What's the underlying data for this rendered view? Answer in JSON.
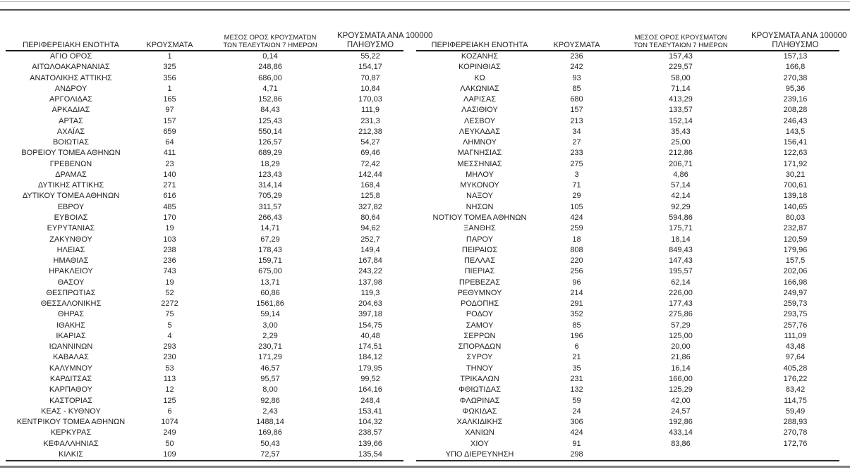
{
  "columns": {
    "region": "ΠΕΡΙΦΕΡΕΙΑΚΗ ΕΝΟΤΗΤΑ",
    "cases": "ΚΡΟΥΣΜΑΤΑ",
    "avg7_line1": "ΜΕΣΟΣ ΟΡΟΣ ΚΡΟΥΣΜΑΤΩΝ",
    "avg7_line2": "ΤΩΝ ΤΕΛΕΥΤΑΙΩΝ 7 ΗΜΕΡΩΝ",
    "per100k_line1": "ΚΡΟΥΣΜΑΤΑ ΑΝΑ 100000",
    "per100k_line2": "ΠΛΗΘΥΣΜΟ"
  },
  "tables": {
    "left": {
      "rows": [
        [
          "ΑΓΙΟ ΟΡΟΣ",
          "1",
          "0,14",
          "55,22"
        ],
        [
          "ΑΙΤΩΛΟΑΚΑΡΝΑΝΙΑΣ",
          "325",
          "248,86",
          "154,17"
        ],
        [
          "ΑΝΑΤΟΛΙΚΗΣ ΑΤΤΙΚΗΣ",
          "356",
          "686,00",
          "70,87"
        ],
        [
          "ΑΝΔΡΟΥ",
          "1",
          "4,71",
          "10,84"
        ],
        [
          "ΑΡΓΟΛΙΔΑΣ",
          "165",
          "152,86",
          "170,03"
        ],
        [
          "ΑΡΚΑΔΙΑΣ",
          "97",
          "84,43",
          "111,9"
        ],
        [
          "ΑΡΤΑΣ",
          "157",
          "125,43",
          "231,3"
        ],
        [
          "ΑΧΑΪΑΣ",
          "659",
          "550,14",
          "212,38"
        ],
        [
          "ΒΟΙΩΤΙΑΣ",
          "64",
          "126,57",
          "54,27"
        ],
        [
          "ΒΟΡΕΙΟΥ ΤΟΜΕΑ ΑΘΗΝΩΝ",
          "411",
          "689,29",
          "69,46"
        ],
        [
          "ΓΡΕΒΕΝΩΝ",
          "23",
          "18,29",
          "72,42"
        ],
        [
          "ΔΡΑΜΑΣ",
          "140",
          "123,43",
          "142,44"
        ],
        [
          "ΔΥΤΙΚΗΣ ΑΤΤΙΚΗΣ",
          "271",
          "314,14",
          "168,4"
        ],
        [
          "ΔΥΤΙΚΟΥ ΤΟΜΕΑ ΑΘΗΝΩΝ",
          "616",
          "705,29",
          "125,8"
        ],
        [
          "ΕΒΡΟΥ",
          "485",
          "311,57",
          "327,82"
        ],
        [
          "ΕΥΒΟΙΑΣ",
          "170",
          "266,43",
          "80,64"
        ],
        [
          "ΕΥΡΥΤΑΝΙΑΣ",
          "19",
          "14,71",
          "94,62"
        ],
        [
          "ΖΑΚΥΝΘΟΥ",
          "103",
          "67,29",
          "252,7"
        ],
        [
          "ΗΛΕΙΑΣ",
          "238",
          "178,43",
          "149,4"
        ],
        [
          "ΗΜΑΘΙΑΣ",
          "236",
          "159,71",
          "167,84"
        ],
        [
          "ΗΡΑΚΛΕΙΟΥ",
          "743",
          "675,00",
          "243,22"
        ],
        [
          "ΘΑΣΟΥ",
          "19",
          "13,71",
          "137,98"
        ],
        [
          "ΘΕΣΠΡΩΤΙΑΣ",
          "52",
          "60,86",
          "119,3"
        ],
        [
          "ΘΕΣΣΑΛΟΝΙΚΗΣ",
          "2272",
          "1561,86",
          "204,63"
        ],
        [
          "ΘΗΡΑΣ",
          "75",
          "59,14",
          "397,18"
        ],
        [
          "ΙΘΑΚΗΣ",
          "5",
          "3,00",
          "154,75"
        ],
        [
          "ΙΚΑΡΙΑΣ",
          "4",
          "2,29",
          "40,48"
        ],
        [
          "ΙΩΑΝΝΙΝΩΝ",
          "293",
          "230,71",
          "174,51"
        ],
        [
          "ΚΑΒΑΛΑΣ",
          "230",
          "171,29",
          "184,12"
        ],
        [
          "ΚΑΛΥΜΝΟΥ",
          "53",
          "46,57",
          "179,95"
        ],
        [
          "ΚΑΡΔΙΤΣΑΣ",
          "113",
          "95,57",
          "99,52"
        ],
        [
          "ΚΑΡΠΑΘΟΥ",
          "12",
          "8,00",
          "164,16"
        ],
        [
          "ΚΑΣΤΟΡΙΑΣ",
          "125",
          "92,86",
          "248,4"
        ],
        [
          "ΚΕΑΣ - ΚΥΘΝΟΥ",
          "6",
          "2,43",
          "153,41"
        ],
        [
          "ΚΕΝΤΡΙΚΟΥ ΤΟΜΕΑ ΑΘΗΝΩΝ",
          "1074",
          "1488,14",
          "104,32"
        ],
        [
          "ΚΕΡΚΥΡΑΣ",
          "249",
          "169,86",
          "238,57"
        ],
        [
          "ΚΕΦΑΛΛΗΝΙΑΣ",
          "50",
          "50,43",
          "139,66"
        ],
        [
          "ΚΙΛΚΙΣ",
          "109",
          "72,57",
          "135,54"
        ]
      ]
    },
    "right": {
      "rows": [
        [
          "ΚΟΖΑΝΗΣ",
          "236",
          "157,43",
          "157,13"
        ],
        [
          "ΚΟΡΙΝΘΙΑΣ",
          "242",
          "229,57",
          "166,8"
        ],
        [
          "ΚΩ",
          "93",
          "58,00",
          "270,38"
        ],
        [
          "ΛΑΚΩΝΙΑΣ",
          "85",
          "71,14",
          "95,36"
        ],
        [
          "ΛΑΡΙΣΑΣ",
          "680",
          "413,29",
          "239,16"
        ],
        [
          "ΛΑΣΙΘΙΟΥ",
          "157",
          "133,57",
          "208,28"
        ],
        [
          "ΛΕΣΒΟΥ",
          "213",
          "152,14",
          "246,43"
        ],
        [
          "ΛΕΥΚΑΔΑΣ",
          "34",
          "35,43",
          "143,5"
        ],
        [
          "ΛΗΜΝΟΥ",
          "27",
          "25,00",
          "156,41"
        ],
        [
          "ΜΑΓΝΗΣΙΑΣ",
          "233",
          "212,86",
          "122,63"
        ],
        [
          "ΜΕΣΣΗΝΙΑΣ",
          "275",
          "206,71",
          "171,92"
        ],
        [
          "ΜΗΛΟΥ",
          "3",
          "4,86",
          "30,21"
        ],
        [
          "ΜΥΚΟΝΟΥ",
          "71",
          "57,14",
          "700,61"
        ],
        [
          "ΝΑΞΟΥ",
          "29",
          "42,14",
          "139,18"
        ],
        [
          "ΝΗΣΩΝ",
          "105",
          "92,29",
          "140,65"
        ],
        [
          "ΝΟΤΙΟΥ ΤΟΜΕΑ ΑΘΗΝΩΝ",
          "424",
          "594,86",
          "80,03"
        ],
        [
          "ΞΑΝΘΗΣ",
          "259",
          "175,71",
          "232,87"
        ],
        [
          "ΠΑΡΟΥ",
          "18",
          "18,14",
          "120,59"
        ],
        [
          "ΠΕΙΡΑΙΩΣ",
          "808",
          "849,43",
          "179,96"
        ],
        [
          "ΠΕΛΛΑΣ",
          "220",
          "147,43",
          "157,5"
        ],
        [
          "ΠΙΕΡΙΑΣ",
          "256",
          "195,57",
          "202,06"
        ],
        [
          "ΠΡΕΒΕΖΑΣ",
          "96",
          "62,14",
          "166,98"
        ],
        [
          "ΡΕΘΥΜΝΟΥ",
          "214",
          "226,00",
          "249,97"
        ],
        [
          "ΡΟΔΟΠΗΣ",
          "291",
          "177,43",
          "259,73"
        ],
        [
          "ΡΟΔΟΥ",
          "352",
          "275,86",
          "293,75"
        ],
        [
          "ΣΑΜΟΥ",
          "85",
          "57,29",
          "257,76"
        ],
        [
          "ΣΕΡΡΩΝ",
          "196",
          "125,00",
          "111,09"
        ],
        [
          "ΣΠΟΡΑΔΩΝ",
          "6",
          "20,00",
          "43,48"
        ],
        [
          "ΣΥΡΟΥ",
          "21",
          "21,86",
          "97,64"
        ],
        [
          "ΤΗΝΟΥ",
          "35",
          "16,14",
          "405,28"
        ],
        [
          "ΤΡΙΚΑΛΩΝ",
          "231",
          "166,00",
          "176,22"
        ],
        [
          "ΦΘΙΩΤΙΔΑΣ",
          "132",
          "125,29",
          "83,42"
        ],
        [
          "ΦΛΩΡΙΝΑΣ",
          "59",
          "42,00",
          "114,75"
        ],
        [
          "ΦΩΚΙΔΑΣ",
          "24",
          "24,57",
          "59,49"
        ],
        [
          "ΧΑΛΚΙΔΙΚΗΣ",
          "306",
          "192,86",
          "288,93"
        ],
        [
          "ΧΑΝΙΩΝ",
          "424",
          "433,14",
          "270,78"
        ],
        [
          "ΧΙΟΥ",
          "91",
          "83,86",
          "172,76"
        ],
        [
          "ΥΠΟ ΔΙΕΡΕΥΝΗΣΗ",
          "298",
          "",
          ""
        ]
      ]
    }
  }
}
